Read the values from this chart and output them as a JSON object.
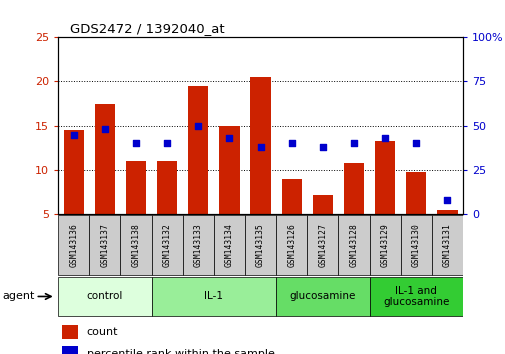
{
  "title": "GDS2472 / 1392040_at",
  "samples": [
    "GSM143136",
    "GSM143137",
    "GSM143138",
    "GSM143132",
    "GSM143133",
    "GSM143134",
    "GSM143135",
    "GSM143126",
    "GSM143127",
    "GSM143128",
    "GSM143129",
    "GSM143130",
    "GSM143131"
  ],
  "count_values": [
    14.5,
    17.5,
    11.0,
    11.0,
    19.5,
    15.0,
    20.5,
    9.0,
    7.2,
    10.8,
    13.3,
    9.8,
    5.5
  ],
  "percentile_values": [
    45,
    48,
    40,
    40,
    50,
    43,
    38,
    40,
    38,
    40,
    43,
    40,
    8
  ],
  "ylim_left": [
    5,
    25
  ],
  "ylim_right": [
    0,
    100
  ],
  "yticks_left": [
    5,
    10,
    15,
    20,
    25
  ],
  "yticks_right": [
    0,
    25,
    50,
    75,
    100
  ],
  "ytick_labels_right": [
    "0",
    "25",
    "50",
    "75",
    "100%"
  ],
  "bar_color": "#cc2200",
  "dot_color": "#0000cc",
  "groups": [
    {
      "label": "control",
      "start": 0,
      "end": 3,
      "color": "#ddffdd"
    },
    {
      "label": "IL-1",
      "start": 3,
      "end": 7,
      "color": "#99ee99"
    },
    {
      "label": "glucosamine",
      "start": 7,
      "end": 10,
      "color": "#66dd66"
    },
    {
      "label": "IL-1 and\nglucosamine",
      "start": 10,
      "end": 13,
      "color": "#33cc33"
    }
  ],
  "agent_label": "agent",
  "legend_count_label": "count",
  "legend_pct_label": "percentile rank within the sample",
  "tick_area_color": "#cccccc",
  "grid_yticks": [
    10,
    15,
    20
  ]
}
